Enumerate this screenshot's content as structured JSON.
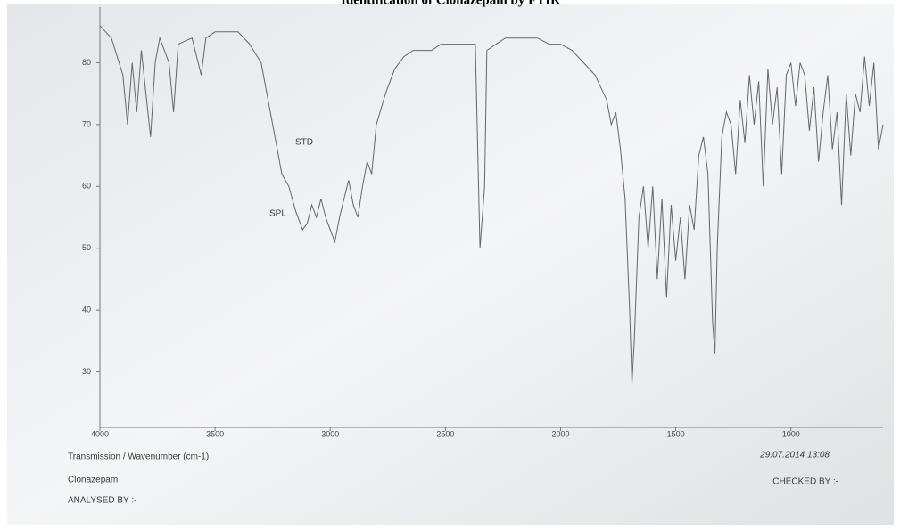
{
  "chart_data": {
    "type": "line",
    "title": "Identification of Clonazepam by FTIR",
    "x": [
      4000,
      3950,
      3900,
      3880,
      3860,
      3840,
      3820,
      3800,
      3780,
      3760,
      3740,
      3700,
      3680,
      3660,
      3600,
      3560,
      3540,
      3500,
      3450,
      3400,
      3350,
      3300,
      3270,
      3240,
      3210,
      3180,
      3150,
      3120,
      3100,
      3080,
      3060,
      3040,
      3020,
      3000,
      2980,
      2960,
      2940,
      2920,
      2900,
      2880,
      2860,
      2840,
      2820,
      2800,
      2760,
      2720,
      2680,
      2640,
      2600,
      2560,
      2520,
      2480,
      2400,
      2370,
      2350,
      2330,
      2320,
      2280,
      2240,
      2200,
      2150,
      2100,
      2050,
      2000,
      1950,
      1900,
      1850,
      1800,
      1780,
      1760,
      1740,
      1720,
      1700,
      1690,
      1680,
      1660,
      1640,
      1620,
      1600,
      1580,
      1560,
      1540,
      1520,
      1500,
      1480,
      1460,
      1440,
      1420,
      1400,
      1380,
      1360,
      1340,
      1330,
      1320,
      1300,
      1280,
      1260,
      1240,
      1220,
      1200,
      1180,
      1160,
      1140,
      1120,
      1100,
      1080,
      1060,
      1040,
      1020,
      1000,
      980,
      960,
      940,
      920,
      900,
      880,
      860,
      840,
      820,
      800,
      780,
      760,
      740,
      720,
      700,
      680,
      660,
      640,
      620,
      600
    ],
    "values": [
      86,
      84,
      78,
      70,
      80,
      72,
      82,
      75,
      68,
      80,
      84,
      80,
      72,
      83,
      84,
      78,
      84,
      85,
      85,
      85,
      83,
      80,
      74,
      68,
      62,
      60,
      56,
      53,
      54,
      57,
      55,
      58,
      55,
      53,
      51,
      55,
      58,
      61,
      57,
      55,
      60,
      64,
      62,
      70,
      75,
      79,
      81,
      82,
      82,
      82,
      83,
      83,
      83,
      83,
      50,
      60,
      82,
      83,
      84,
      84,
      84,
      84,
      83,
      83,
      82,
      80,
      78,
      74,
      70,
      72,
      66,
      58,
      40,
      28,
      35,
      55,
      60,
      50,
      60,
      45,
      58,
      42,
      57,
      48,
      55,
      45,
      57,
      53,
      65,
      68,
      62,
      38,
      33,
      50,
      68,
      72,
      70,
      62,
      74,
      67,
      78,
      70,
      77,
      60,
      79,
      70,
      76,
      62,
      78,
      80,
      73,
      80,
      78,
      69,
      76,
      64,
      72,
      78,
      66,
      72,
      57,
      75,
      65,
      75,
      72,
      81,
      73,
      80,
      66,
      70
    ],
    "color": "#666666",
    "xlim": [
      4000,
      600
    ],
    "xticks": [
      4000,
      3500,
      3000,
      2500,
      2000,
      1500,
      1000
    ],
    "ylim": [
      21,
      89
    ],
    "yticks": [
      30,
      40,
      50,
      60,
      70,
      80
    ],
    "annotations": [
      "STD",
      "SPL"
    ],
    "xlabel": "Transmission / Wavenumber (cm-1)",
    "timestamp": "29.07.2014 13:08",
    "sample": "Clonazepam",
    "analysed": "ANALYSED BY :-",
    "checked": "CHECKED BY :-"
  }
}
